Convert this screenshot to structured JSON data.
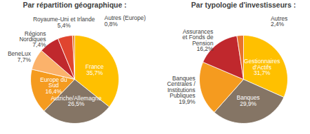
{
  "chart_data": [
    {
      "type": "pie",
      "title": "Par répartition géographique :",
      "categories": [
        "France",
        "Autriche/Allemagne",
        "Europe du Sud",
        "BeneLux",
        "Régions Nordiques",
        "Royaume-Uni et Irlande",
        "Autres (Europe)"
      ],
      "values": [
        35.7,
        26.5,
        16.4,
        7.7,
        7.4,
        5.4,
        0.8
      ],
      "value_labels": [
        "35,7%",
        "26,5%",
        "16,4%",
        "7,7%",
        "7,4%",
        "5,4%",
        "0,8%"
      ],
      "colors": [
        "#FFC000",
        "#857565",
        "#F59B1F",
        "#FBB26B",
        "#C0282D",
        "#E0452F",
        "#E8812B"
      ],
      "data_labels": true
    },
    {
      "type": "pie",
      "title": "Par typologie d'investisseurs :",
      "categories": [
        "Gestionnaires d'Actifs",
        "Banques",
        "Banques Centrales / Institutions Publiques",
        "Assurances et Fonds de Pension",
        "Autres"
      ],
      "values": [
        31.7,
        29.9,
        19.9,
        16.2,
        2.4
      ],
      "value_labels": [
        "31,7%",
        "29,9%",
        "19,9%",
        "16,2%",
        "2,4%"
      ],
      "colors": [
        "#FFC000",
        "#857565",
        "#F59B1F",
        "#C0282D",
        "#E8732C"
      ],
      "data_labels": true
    }
  ]
}
